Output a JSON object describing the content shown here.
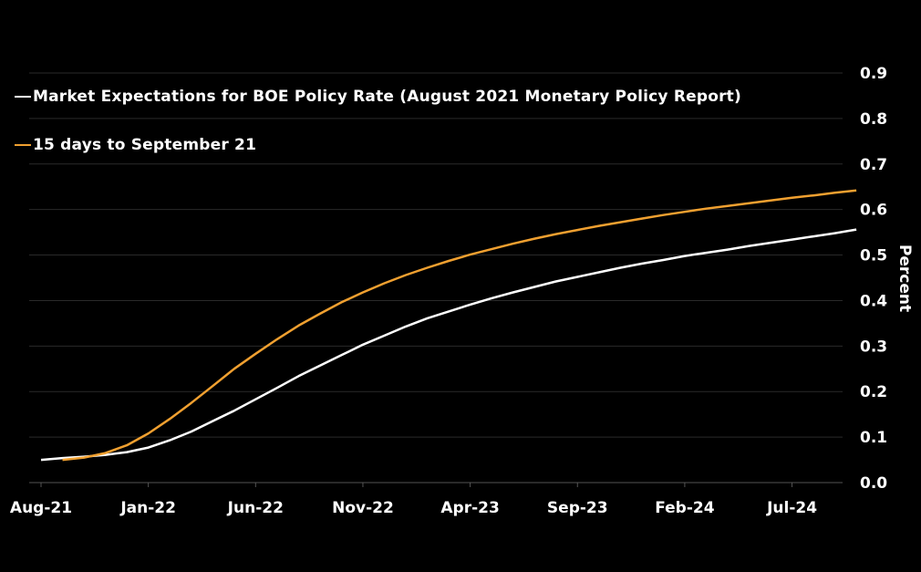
{
  "chart_data": {
    "type": "line",
    "title": "",
    "xlabel": "",
    "ylabel": "Percent",
    "ylim": [
      0,
      0.9
    ],
    "yticks": [
      "0.0",
      "0.1",
      "0.2",
      "0.3",
      "0.4",
      "0.5",
      "0.6",
      "0.7",
      "0.8",
      "0.9"
    ],
    "xticks": [
      "Aug-21",
      "Jan-22",
      "Jun-22",
      "Nov-22",
      "Apr-23",
      "Sep-23",
      "Feb-24",
      "Jul-24"
    ],
    "grid": true,
    "legend_position": "top-left",
    "series": [
      {
        "name": "Market Expectations for BOE Policy Rate (August 2021 Monetary Policy Report)",
        "color": "#ffffff",
        "x": [
          "2021-08",
          "2021-09",
          "2021-10",
          "2021-11",
          "2021-12",
          "2022-01",
          "2022-02",
          "2022-03",
          "2022-04",
          "2022-05",
          "2022-06",
          "2022-07",
          "2022-08",
          "2022-09",
          "2022-10",
          "2022-11",
          "2022-12",
          "2023-01",
          "2023-02",
          "2023-03",
          "2023-04",
          "2023-05",
          "2023-06",
          "2023-07",
          "2023-08",
          "2023-09",
          "2023-10",
          "2023-11",
          "2023-12",
          "2024-01",
          "2024-02",
          "2024-03",
          "2024-04",
          "2024-05",
          "2024-06",
          "2024-07",
          "2024-08",
          "2024-09",
          "2024-10"
        ],
        "values": [
          0.05,
          0.054,
          0.057,
          0.061,
          0.067,
          0.077,
          0.093,
          0.112,
          0.135,
          0.158,
          0.183,
          0.208,
          0.234,
          0.257,
          0.28,
          0.303,
          0.323,
          0.343,
          0.361,
          0.376,
          0.391,
          0.405,
          0.418,
          0.43,
          0.442,
          0.452,
          0.462,
          0.472,
          0.481,
          0.489,
          0.498,
          0.505,
          0.512,
          0.52,
          0.527,
          0.534,
          0.541,
          0.548,
          0.556
        ]
      },
      {
        "name": "15 days to September 21",
        "color": "#f0a030",
        "x": [
          "2021-09",
          "2021-10",
          "2021-11",
          "2021-12",
          "2022-01",
          "2022-02",
          "2022-03",
          "2022-04",
          "2022-05",
          "2022-06",
          "2022-07",
          "2022-08",
          "2022-09",
          "2022-10",
          "2022-11",
          "2022-12",
          "2023-01",
          "2023-02",
          "2023-03",
          "2023-04",
          "2023-05",
          "2023-06",
          "2023-07",
          "2023-08",
          "2023-09",
          "2023-10",
          "2023-11",
          "2023-12",
          "2024-01",
          "2024-02",
          "2024-03",
          "2024-04",
          "2024-05",
          "2024-06",
          "2024-07",
          "2024-08",
          "2024-09",
          "2024-10"
        ],
        "values": [
          0.05,
          0.055,
          0.065,
          0.082,
          0.108,
          0.14,
          0.175,
          0.212,
          0.25,
          0.283,
          0.315,
          0.345,
          0.371,
          0.396,
          0.418,
          0.438,
          0.456,
          0.472,
          0.487,
          0.501,
          0.513,
          0.525,
          0.536,
          0.546,
          0.555,
          0.564,
          0.572,
          0.58,
          0.588,
          0.595,
          0.602,
          0.608,
          0.614,
          0.62,
          0.626,
          0.631,
          0.637,
          0.642
        ]
      }
    ]
  }
}
